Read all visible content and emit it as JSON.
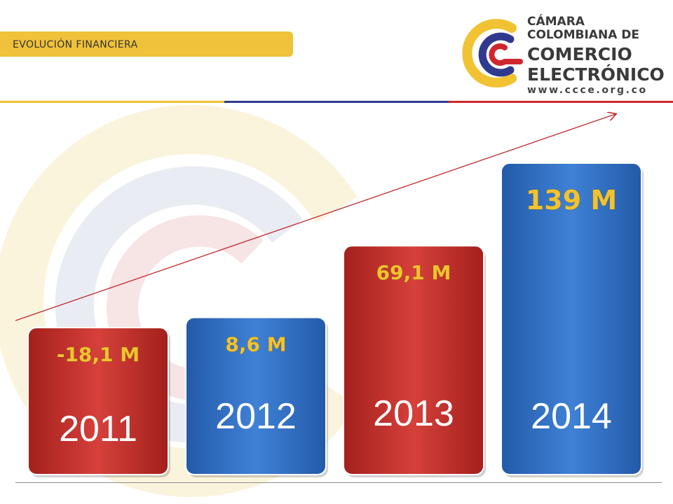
{
  "header": {
    "section_title": "EVOLUCIÓN FINANCIERA"
  },
  "brand": {
    "name_line1": "CÁMARA",
    "name_line2": "COLOMBIANA DE",
    "name_line3": "COMERCIO",
    "name_line4": "ELECTRÓNICO",
    "url": "www.ccce.org.co",
    "colors": {
      "yellow": "#f1c232",
      "blue": "#2f3a8f",
      "red": "#d0262e"
    }
  },
  "chart_data": {
    "type": "bar",
    "categories": [
      "2011",
      "2012",
      "2013",
      "2014"
    ],
    "values": [
      -18.1,
      8.6,
      69.1,
      139
    ],
    "value_labels": [
      "-18,1 M",
      "8,6 M",
      "69,1 M",
      "139 M"
    ],
    "bar_colors": [
      "#c9302c",
      "#2f6fc4",
      "#c9302c",
      "#2f6fc4"
    ],
    "title": "",
    "xlabel": "",
    "ylabel": "",
    "trend_arrow": true,
    "grid": false,
    "legend": "none"
  }
}
